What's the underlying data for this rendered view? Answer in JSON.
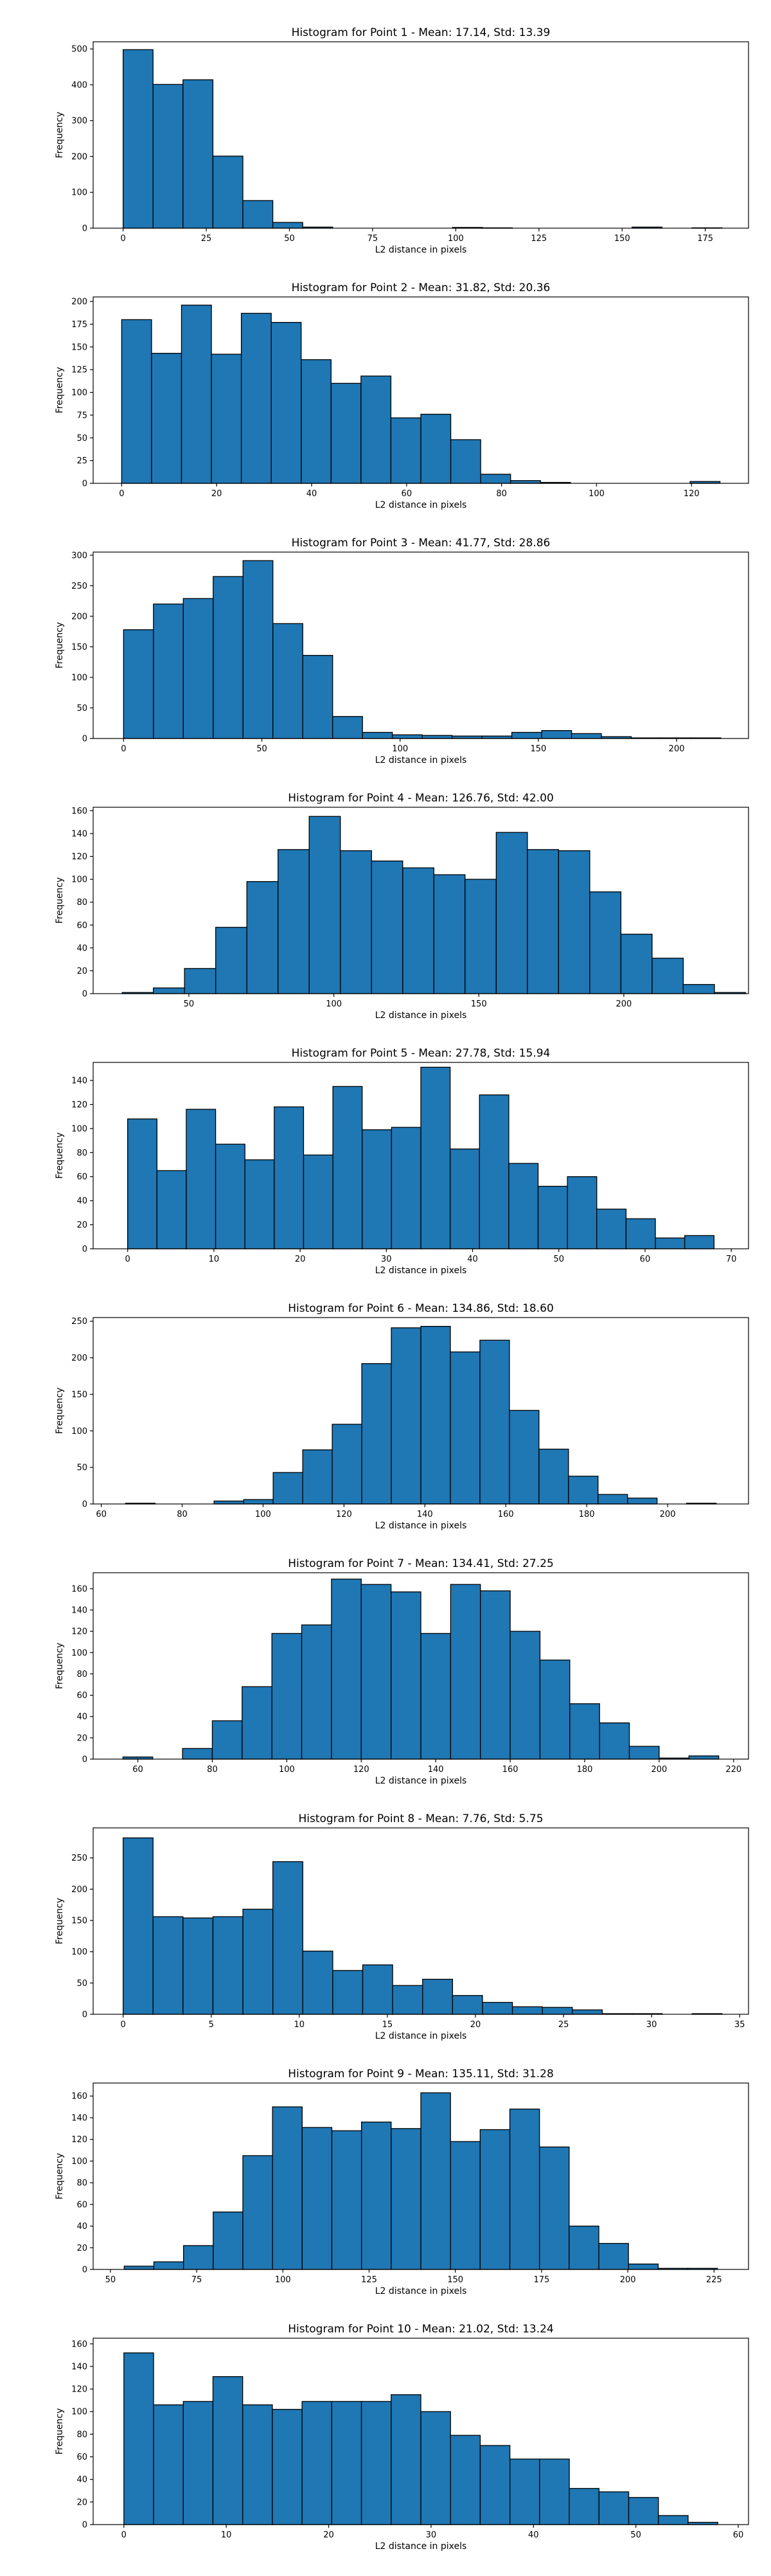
{
  "chart_data": [
    {
      "type": "bar",
      "title": "Histogram for Point 1 - Mean: 17.14, Std: 13.39",
      "xlabel": "L2 distance in pixels",
      "ylabel": "Frequency",
      "xlim": [
        -9,
        188
      ],
      "ylim": [
        0,
        520
      ],
      "xticks": [
        0,
        25,
        50,
        75,
        100,
        125,
        150,
        175
      ],
      "yticks": [
        0,
        100,
        200,
        300,
        400,
        500
      ],
      "bin_start": 0,
      "bin_width": 9,
      "values": [
        498,
        401,
        414,
        201,
        77,
        16,
        3,
        0,
        0,
        0,
        0,
        2,
        1,
        0,
        0,
        0,
        0,
        3,
        0,
        1
      ]
    },
    {
      "type": "bar",
      "title": "Histogram for Point 2 - Mean: 31.82, Std: 20.36",
      "xlabel": "L2 distance in pixels",
      "ylabel": "Frequency",
      "xlim": [
        -6,
        132
      ],
      "ylim": [
        0,
        205
      ],
      "xticks": [
        0,
        20,
        40,
        60,
        80,
        100,
        120
      ],
      "yticks": [
        0,
        25,
        50,
        75,
        100,
        125,
        150,
        175,
        200
      ],
      "bin_start": 0,
      "bin_width": 6.3,
      "values": [
        180,
        143,
        196,
        142,
        187,
        177,
        136,
        110,
        118,
        72,
        76,
        48,
        10,
        3,
        1,
        0,
        0,
        0,
        0,
        2
      ]
    },
    {
      "type": "bar",
      "title": "Histogram for Point 3 - Mean: 41.77, Std: 28.86",
      "xlabel": "L2 distance in pixels",
      "ylabel": "Frequency",
      "xlim": [
        -11,
        226
      ],
      "ylim": [
        0,
        305
      ],
      "xticks": [
        0,
        50,
        100,
        150,
        200
      ],
      "yticks": [
        0,
        50,
        100,
        150,
        200,
        250,
        300
      ],
      "bin_start": 0,
      "bin_width": 10.8,
      "values": [
        178,
        220,
        229,
        265,
        291,
        188,
        136,
        36,
        10,
        6,
        5,
        4,
        4,
        10,
        13,
        8,
        3,
        1,
        1,
        1
      ]
    },
    {
      "type": "bar",
      "title": "Histogram for Point 4 - Mean: 126.76, Std: 42.00",
      "xlabel": "L2 distance in pixels",
      "ylabel": "Frequency",
      "xlim": [
        17,
        243
      ],
      "ylim": [
        0,
        163
      ],
      "xticks": [
        50,
        100,
        150,
        200
      ],
      "yticks": [
        0,
        20,
        40,
        60,
        80,
        100,
        120,
        140,
        160
      ],
      "bin_start": 27,
      "bin_width": 10.75,
      "values": [
        1,
        5,
        22,
        58,
        98,
        126,
        155,
        125,
        116,
        110,
        104,
        100,
        141,
        126,
        125,
        89,
        52,
        31,
        8,
        1
      ]
    },
    {
      "type": "bar",
      "title": "Histogram for Point 5 - Mean: 27.78, Std: 15.94",
      "xlabel": "L2 distance in pixels",
      "ylabel": "Frequency",
      "xlim": [
        -4,
        72
      ],
      "ylim": [
        0,
        155
      ],
      "xticks": [
        0,
        10,
        20,
        30,
        40,
        50,
        60,
        70
      ],
      "yticks": [
        0,
        20,
        40,
        60,
        80,
        100,
        120,
        140
      ],
      "bin_start": 0,
      "bin_width": 3.4,
      "values": [
        108,
        65,
        116,
        87,
        74,
        118,
        78,
        135,
        99,
        101,
        151,
        83,
        128,
        71,
        52,
        60,
        33,
        25,
        9,
        11
      ]
    },
    {
      "type": "bar",
      "title": "Histogram for Point 6 - Mean: 134.86, Std: 18.60",
      "xlabel": "L2 distance in pixels",
      "ylabel": "Frequency",
      "xlim": [
        58,
        220
      ],
      "ylim": [
        0,
        255
      ],
      "xticks": [
        60,
        80,
        100,
        120,
        140,
        160,
        180,
        200
      ],
      "yticks": [
        0,
        50,
        100,
        150,
        200,
        250
      ],
      "bin_start": 66,
      "bin_width": 7.3,
      "values": [
        1,
        0,
        0,
        4,
        6,
        43,
        74,
        109,
        192,
        241,
        243,
        208,
        224,
        128,
        75,
        38,
        13,
        8,
        0,
        1
      ]
    },
    {
      "type": "bar",
      "title": "Histogram for Point 7 - Mean: 134.41, Std: 27.25",
      "xlabel": "L2 distance in pixels",
      "ylabel": "Frequency",
      "xlim": [
        48,
        224
      ],
      "ylim": [
        0,
        175
      ],
      "xticks": [
        60,
        80,
        100,
        120,
        140,
        160,
        180,
        200,
        220
      ],
      "yticks": [
        0,
        20,
        40,
        60,
        80,
        100,
        120,
        140,
        160
      ],
      "bin_start": 56,
      "bin_width": 8,
      "values": [
        2,
        0,
        10,
        36,
        68,
        118,
        126,
        169,
        164,
        157,
        118,
        164,
        158,
        120,
        93,
        52,
        34,
        12,
        1,
        3
      ]
    },
    {
      "type": "bar",
      "title": "Histogram for Point 8 - Mean: 7.76, Std: 5.75",
      "xlabel": "L2 distance in pixels",
      "ylabel": "Frequency",
      "xlim": [
        -1.7,
        35.5
      ],
      "ylim": [
        0,
        298
      ],
      "xticks": [
        0,
        5,
        10,
        15,
        20,
        25,
        30,
        35
      ],
      "yticks": [
        0,
        50,
        100,
        150,
        200,
        250
      ],
      "bin_start": 0,
      "bin_width": 1.7,
      "values": [
        282,
        156,
        154,
        156,
        168,
        244,
        101,
        70,
        79,
        46,
        56,
        30,
        19,
        12,
        11,
        7,
        1,
        1,
        0,
        1
      ]
    },
    {
      "type": "bar",
      "title": "Histogram for Point 9 - Mean: 135.11, Std: 31.28",
      "xlabel": "L2 distance in pixels",
      "ylabel": "Frequency",
      "xlim": [
        45,
        235
      ],
      "ylim": [
        0,
        172
      ],
      "xticks": [
        50,
        75,
        100,
        125,
        150,
        175,
        200,
        225
      ],
      "yticks": [
        0,
        20,
        40,
        60,
        80,
        100,
        120,
        140,
        160
      ],
      "bin_start": 54,
      "bin_width": 8.6,
      "values": [
        3,
        7,
        22,
        53,
        105,
        150,
        131,
        128,
        136,
        130,
        163,
        118,
        129,
        148,
        113,
        40,
        24,
        5,
        1,
        1
      ]
    },
    {
      "type": "bar",
      "title": "Histogram for Point 10 - Mean: 21.02, Std: 13.24",
      "xlabel": "L2 distance in pixels",
      "ylabel": "Frequency",
      "xlim": [
        -3,
        61
      ],
      "ylim": [
        0,
        165
      ],
      "xticks": [
        0,
        10,
        20,
        30,
        40,
        50,
        60
      ],
      "yticks": [
        0,
        20,
        40,
        60,
        80,
        100,
        120,
        140,
        160
      ],
      "bin_start": 0,
      "bin_width": 2.9,
      "values": [
        152,
        106,
        109,
        131,
        106,
        102,
        109,
        109,
        109,
        115,
        100,
        79,
        70,
        58,
        58,
        32,
        29,
        24,
        8,
        2
      ]
    }
  ]
}
